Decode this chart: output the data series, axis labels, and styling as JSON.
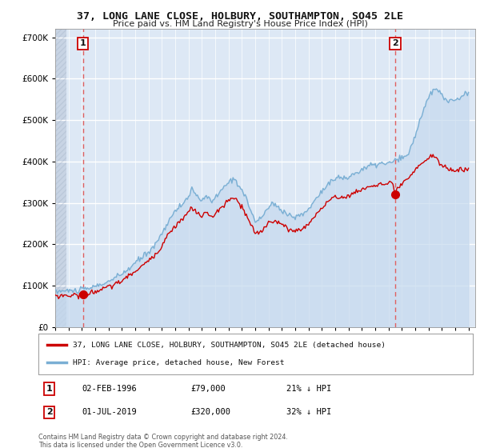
{
  "title": "37, LONG LANE CLOSE, HOLBURY, SOUTHAMPTON, SO45 2LE",
  "subtitle": "Price paid vs. HM Land Registry's House Price Index (HPI)",
  "legend_line1": "37, LONG LANE CLOSE, HOLBURY, SOUTHAMPTON, SO45 2LE (detached house)",
  "legend_line2": "HPI: Average price, detached house, New Forest",
  "annotation1_label": "1",
  "annotation1_date": "02-FEB-1996",
  "annotation1_price": "£79,000",
  "annotation1_hpi": "21% ↓ HPI",
  "annotation2_label": "2",
  "annotation2_date": "01-JUL-2019",
  "annotation2_price": "£320,000",
  "annotation2_hpi": "32% ↓ HPI",
  "footer": "Contains HM Land Registry data © Crown copyright and database right 2024.\nThis data is licensed under the Open Government Licence v3.0.",
  "background_color": "#ffffff",
  "plot_bg_color": "#dde8f5",
  "ylim": [
    0,
    720000
  ],
  "yticks": [
    0,
    100000,
    200000,
    300000,
    400000,
    500000,
    600000,
    700000
  ],
  "price_color": "#cc0000",
  "hpi_color": "#7aafd4",
  "hpi_fill_color": "#c5d9ee",
  "vline_color": "#e06060",
  "sale1_x": 1996.09,
  "sale1_y": 79000,
  "sale2_x": 2019.5,
  "sale2_y": 320000,
  "xmin": 1994.0,
  "xmax": 2025.5
}
